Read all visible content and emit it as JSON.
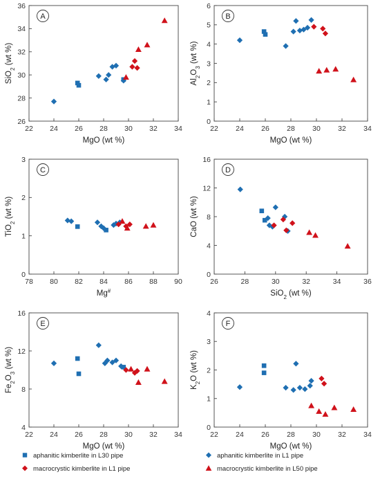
{
  "chart_data": [
    {
      "type": "scatter",
      "panel": "A",
      "xlabel": "MgO (wt %)",
      "ylabel": "SiO2 (wt %)",
      "xlim": [
        22,
        34
      ],
      "ylim": [
        26,
        36
      ],
      "xticks": [
        22,
        24,
        26,
        28,
        30,
        32,
        34
      ],
      "yticks": [
        26,
        28,
        30,
        32,
        34,
        36
      ],
      "grid": false,
      "series": [
        {
          "key": "l30",
          "points": [
            [
              25.9,
              29.3
            ],
            [
              26.0,
              29.1
            ],
            [
              29.6,
              29.6
            ]
          ]
        },
        {
          "key": "l1a",
          "points": [
            [
              24.0,
              27.7
            ],
            [
              27.6,
              29.9
            ],
            [
              28.2,
              29.6
            ],
            [
              28.4,
              30.0
            ],
            [
              28.7,
              30.7
            ],
            [
              29.0,
              30.8
            ],
            [
              29.6,
              29.5
            ]
          ]
        },
        {
          "key": "l1m",
          "points": [
            [
              30.3,
              30.7
            ],
            [
              30.5,
              31.2
            ],
            [
              30.7,
              30.6
            ]
          ]
        },
        {
          "key": "l50",
          "points": [
            [
              29.8,
              29.8
            ],
            [
              30.8,
              32.2
            ],
            [
              31.5,
              32.6
            ],
            [
              32.9,
              34.7
            ]
          ]
        }
      ]
    },
    {
      "type": "scatter",
      "panel": "B",
      "xlabel": "MgO (wt %)",
      "ylabel": "Al2O3 (wt %)",
      "xlim": [
        22,
        34
      ],
      "ylim": [
        0,
        6
      ],
      "xticks": [
        22,
        24,
        26,
        28,
        30,
        32,
        34
      ],
      "yticks": [
        0,
        1,
        2,
        3,
        4,
        5,
        6
      ],
      "grid": false,
      "series": [
        {
          "key": "l30",
          "points": [
            [
              25.9,
              4.65
            ],
            [
              26.0,
              4.5
            ]
          ]
        },
        {
          "key": "l1a",
          "points": [
            [
              24.0,
              4.2
            ],
            [
              27.6,
              3.9
            ],
            [
              28.2,
              4.65
            ],
            [
              28.4,
              5.2
            ],
            [
              28.7,
              4.7
            ],
            [
              29.0,
              4.75
            ],
            [
              29.3,
              4.85
            ],
            [
              29.6,
              5.25
            ]
          ]
        },
        {
          "key": "l1m",
          "points": [
            [
              29.8,
              4.9
            ],
            [
              30.5,
              4.8
            ],
            [
              30.7,
              4.55
            ]
          ]
        },
        {
          "key": "l50",
          "points": [
            [
              30.2,
              2.6
            ],
            [
              30.8,
              2.65
            ],
            [
              31.5,
              2.7
            ],
            [
              32.9,
              2.15
            ]
          ]
        }
      ]
    },
    {
      "type": "scatter",
      "panel": "C",
      "xlabel": "Mg#",
      "ylabel": "TiO2 (wt %)",
      "xlim": [
        78,
        90
      ],
      "ylim": [
        0,
        3
      ],
      "xticks": [
        78,
        80,
        82,
        84,
        86,
        88,
        90
      ],
      "yticks": [
        0,
        1,
        2,
        3
      ],
      "grid": false,
      "series": [
        {
          "key": "l30",
          "points": [
            [
              81.9,
              1.24
            ],
            [
              84.2,
              1.15
            ]
          ]
        },
        {
          "key": "l1a",
          "points": [
            [
              81.1,
              1.4
            ],
            [
              81.4,
              1.38
            ],
            [
              83.5,
              1.35
            ],
            [
              83.8,
              1.25
            ],
            [
              84.0,
              1.2
            ],
            [
              84.8,
              1.28
            ],
            [
              85.0,
              1.32
            ],
            [
              85.3,
              1.35
            ]
          ]
        },
        {
          "key": "l1m",
          "points": [
            [
              85.2,
              1.3
            ],
            [
              85.8,
              1.25
            ],
            [
              86.1,
              1.3
            ]
          ]
        },
        {
          "key": "l50",
          "points": [
            [
              85.5,
              1.38
            ],
            [
              85.9,
              1.2
            ],
            [
              87.4,
              1.25
            ],
            [
              88.0,
              1.28
            ]
          ]
        }
      ]
    },
    {
      "type": "scatter",
      "panel": "D",
      "xlabel": "SiO2 (wt %)",
      "ylabel": "CaO (wt %)",
      "xlim": [
        26,
        36
      ],
      "ylim": [
        0,
        16
      ],
      "xticks": [
        26,
        28,
        30,
        32,
        34,
        36
      ],
      "yticks": [
        0,
        4,
        8,
        12,
        16
      ],
      "grid": false,
      "series": [
        {
          "key": "l30",
          "points": [
            [
              29.1,
              8.8
            ],
            [
              29.3,
              7.5
            ]
          ]
        },
        {
          "key": "l1a",
          "points": [
            [
              27.7,
              11.8
            ],
            [
              29.5,
              7.8
            ],
            [
              29.6,
              6.8
            ],
            [
              29.8,
              6.6
            ],
            [
              30.0,
              9.3
            ],
            [
              30.6,
              8.0
            ],
            [
              30.8,
              6.0
            ]
          ]
        },
        {
          "key": "l1m",
          "points": [
            [
              29.9,
              6.8
            ],
            [
              30.5,
              7.6
            ],
            [
              30.7,
              6.1
            ],
            [
              31.1,
              7.1
            ]
          ]
        },
        {
          "key": "l50",
          "points": [
            [
              32.2,
              5.8
            ],
            [
              32.6,
              5.4
            ],
            [
              34.7,
              3.9
            ]
          ]
        }
      ]
    },
    {
      "type": "scatter",
      "panel": "E",
      "xlabel": "MgO (wt %)",
      "ylabel": "Fe2O3 (wt %)",
      "xlim": [
        22,
        34
      ],
      "ylim": [
        4,
        16
      ],
      "xticks": [
        22,
        24,
        26,
        28,
        30,
        32,
        34
      ],
      "yticks": [
        4,
        8,
        12,
        16
      ],
      "grid": false,
      "series": [
        {
          "key": "l30",
          "points": [
            [
              25.9,
              11.2
            ],
            [
              26.0,
              9.6
            ],
            [
              29.6,
              10.3
            ]
          ]
        },
        {
          "key": "l1a",
          "points": [
            [
              24.0,
              10.7
            ],
            [
              27.6,
              12.6
            ],
            [
              28.1,
              10.7
            ],
            [
              28.3,
              11.0
            ],
            [
              28.7,
              10.8
            ],
            [
              29.0,
              11.0
            ],
            [
              29.4,
              10.4
            ]
          ]
        },
        {
          "key": "l1m",
          "points": [
            [
              29.8,
              10.0
            ],
            [
              30.5,
              9.7
            ],
            [
              30.7,
              9.9
            ]
          ]
        },
        {
          "key": "l50",
          "points": [
            [
              30.2,
              10.1
            ],
            [
              30.8,
              8.7
            ],
            [
              31.5,
              10.1
            ],
            [
              32.9,
              8.8
            ]
          ]
        }
      ]
    },
    {
      "type": "scatter",
      "panel": "F",
      "xlabel": "MgO (wt %)",
      "ylabel": "K2O (wt %)",
      "xlim": [
        22,
        34
      ],
      "ylim": [
        0,
        4
      ],
      "xticks": [
        22,
        24,
        26,
        28,
        30,
        32,
        34
      ],
      "yticks": [
        0,
        1,
        2,
        3,
        4
      ],
      "grid": false,
      "series": [
        {
          "key": "l30",
          "points": [
            [
              25.9,
              2.15
            ],
            [
              25.9,
              1.9
            ]
          ]
        },
        {
          "key": "l1a",
          "points": [
            [
              24.0,
              1.4
            ],
            [
              27.6,
              1.38
            ],
            [
              28.2,
              1.3
            ],
            [
              28.4,
              2.22
            ],
            [
              28.7,
              1.38
            ],
            [
              29.1,
              1.33
            ],
            [
              29.5,
              1.45
            ],
            [
              29.6,
              1.62
            ]
          ]
        },
        {
          "key": "l1m",
          "points": [
            [
              30.4,
              1.7
            ],
            [
              30.6,
              1.52
            ]
          ]
        },
        {
          "key": "l50",
          "points": [
            [
              29.6,
              0.75
            ],
            [
              30.2,
              0.55
            ],
            [
              30.7,
              0.45
            ],
            [
              31.4,
              0.68
            ],
            [
              32.9,
              0.62
            ]
          ]
        }
      ]
    }
  ],
  "legend": [
    {
      "key": "l30",
      "label": "aphanitic kimberlite in L30 pipe",
      "marker": "square",
      "color": "#1f6fb2"
    },
    {
      "key": "l1a",
      "label": "aphanitic kimberlite in L1 pipe",
      "marker": "diamond",
      "color": "#1f6fb2"
    },
    {
      "key": "l1m",
      "label": "macrocrystic kimberlite in L1 pipe",
      "marker": "diamond",
      "color": "#d0121b"
    },
    {
      "key": "l50",
      "label": "macrocrystic kimberlite in L50 pipe",
      "marker": "triangle",
      "color": "#d0121b"
    }
  ],
  "legend_placement": "bottom"
}
